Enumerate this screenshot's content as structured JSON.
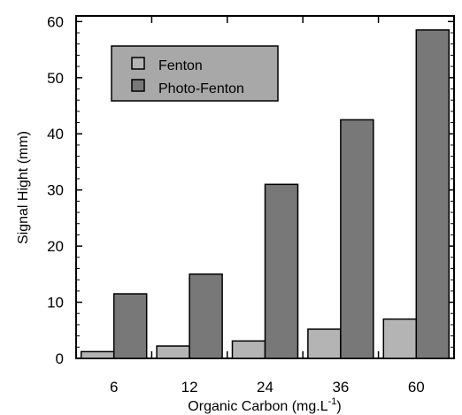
{
  "chart_data": {
    "type": "bar",
    "categories": [
      "6",
      "12",
      "24",
      "36",
      "60"
    ],
    "series": [
      {
        "name": "Fenton",
        "values": [
          1.2,
          2.2,
          3.1,
          5.2,
          7.0
        ],
        "color": "#b4b4b4"
      },
      {
        "name": "Photo-Fenton",
        "values": [
          11.5,
          15.0,
          31.0,
          42.5,
          58.5
        ],
        "color": "#787878"
      }
    ],
    "xlabel": "Organic Carbon (mg.L",
    "xlabel_sup": "-1",
    "xlabel_end": ")",
    "ylabel": "Signal Hight (mm)",
    "ylim": [
      0,
      61
    ],
    "yticks": [
      0,
      10,
      20,
      30,
      40,
      50,
      60
    ],
    "legend_position": "top-left",
    "grid": false
  }
}
